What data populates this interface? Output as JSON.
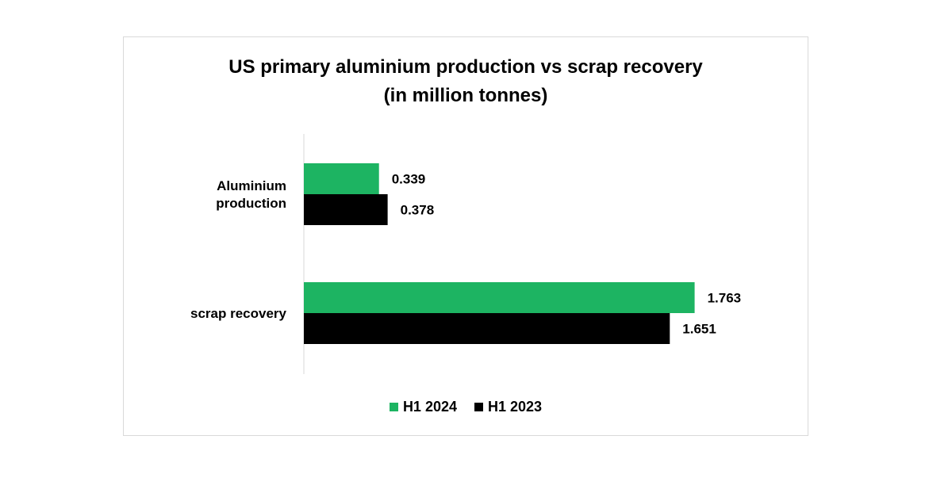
{
  "chart_data": {
    "type": "bar",
    "orientation": "horizontal",
    "title": "US primary aluminium production vs scrap recovery",
    "subtitle": "(in million tonnes)",
    "categories": [
      [
        "Aluminium",
        "production"
      ],
      [
        "scrap recovery"
      ]
    ],
    "series": [
      {
        "name": "H1 2024",
        "color": "#1db462",
        "values": [
          0.339,
          1.763
        ]
      },
      {
        "name": "H1 2023",
        "color": "#000000",
        "values": [
          0.378,
          1.651
        ]
      }
    ],
    "xlim": [
      0,
      1.8
    ],
    "grid": false,
    "data_labels": true,
    "legend_position": "bottom"
  }
}
